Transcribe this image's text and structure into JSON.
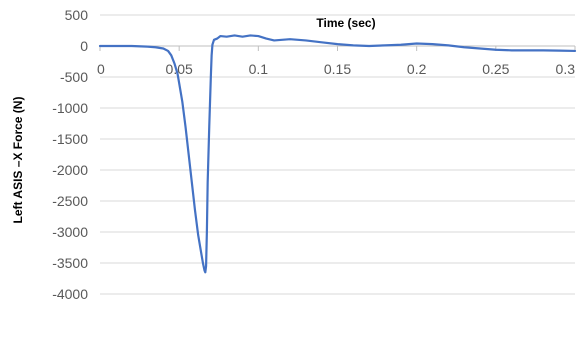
{
  "chart_data": {
    "type": "line",
    "title": "",
    "xlabel": "Time (sec)",
    "ylabel": "Left ASIS –X Force (N)",
    "xlim": [
      0,
      0.3
    ],
    "ylim": [
      -4000,
      500
    ],
    "xticks": [
      0,
      0.05,
      0.1,
      0.15,
      0.2,
      0.25,
      0.3
    ],
    "xtick_labels": [
      "0",
      "0.05",
      "0.1",
      "0.15",
      "0.2",
      "0.25",
      "0.3"
    ],
    "yticks": [
      500,
      0,
      -500,
      -1000,
      -1500,
      -2000,
      -2500,
      -3000,
      -3500,
      -4000
    ],
    "ytick_labels": [
      "500",
      "0",
      "-500",
      "-1000",
      "-1500",
      "-2000",
      "-2500",
      "-3000",
      "-3500",
      "-4000"
    ],
    "grid": "horizontal",
    "legend": "none",
    "line_color": "#4472C4",
    "series": [
      {
        "x": [
          0,
          0.01,
          0.02,
          0.03,
          0.035,
          0.04,
          0.043,
          0.045,
          0.047,
          0.049,
          0.05,
          0.052,
          0.054,
          0.056,
          0.058,
          0.06,
          0.062,
          0.064,
          0.065,
          0.066,
          0.0665,
          0.067,
          0.0675,
          0.068,
          0.069,
          0.07,
          0.0705,
          0.071,
          0.072,
          0.074,
          0.076,
          0.08,
          0.085,
          0.09,
          0.095,
          0.1,
          0.105,
          0.11,
          0.115,
          0.12,
          0.13,
          0.14,
          0.15,
          0.16,
          0.17,
          0.18,
          0.19,
          0.2,
          0.21,
          0.22,
          0.23,
          0.24,
          0.25,
          0.26,
          0.27,
          0.28,
          0.29,
          0.3
        ],
        "y": [
          0,
          0,
          0,
          -10,
          -20,
          -40,
          -80,
          -150,
          -280,
          -450,
          -600,
          -900,
          -1300,
          -1750,
          -2200,
          -2650,
          -3050,
          -3350,
          -3500,
          -3620,
          -3650,
          -3550,
          -3000,
          -2200,
          -1300,
          -500,
          -150,
          20,
          100,
          120,
          160,
          150,
          170,
          150,
          170,
          160,
          120,
          90,
          100,
          110,
          90,
          60,
          30,
          10,
          0,
          10,
          20,
          40,
          30,
          10,
          -20,
          -40,
          -60,
          -70,
          -70,
          -70,
          -75,
          -80
        ]
      }
    ]
  }
}
